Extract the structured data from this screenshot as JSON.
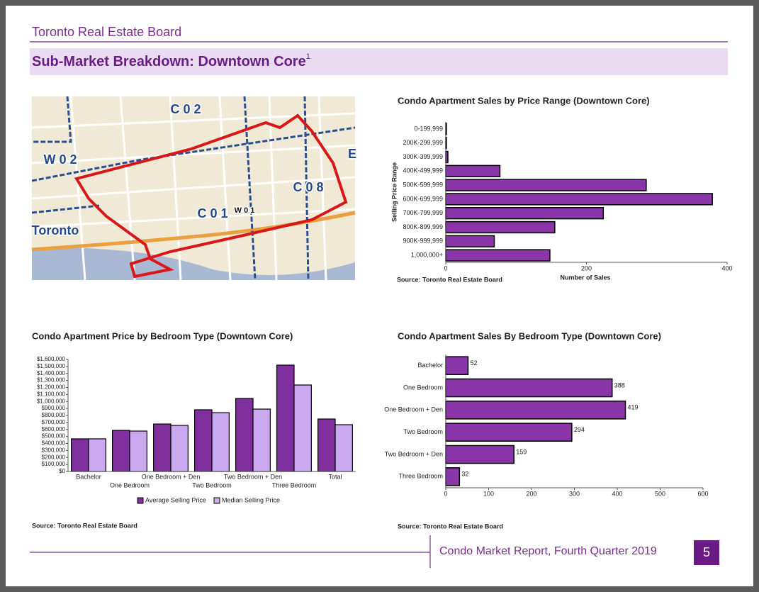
{
  "header": {
    "org": "Toronto Real Estate Board",
    "title": "Sub-Market Breakdown: Downtown Core",
    "footnote": "1"
  },
  "map": {
    "labels": [
      "C 0 2",
      "W 0 2",
      "C 0 8",
      "C 0 1",
      "W 0 1",
      "Toronto",
      "E"
    ]
  },
  "chart_data": [
    {
      "type": "hbar",
      "title": "Condo Apartment Sales by Price Range (Downtown Core)",
      "categories": [
        "0-199,999",
        "200K-299,999",
        "300K-399,999",
        "400K-499,999",
        "500K-599,999",
        "600K-699,999",
        "700K-799,999",
        "800K-899,999",
        "900K-999,999",
        "1,000,000+"
      ],
      "values": [
        1,
        1,
        3,
        77,
        285,
        379,
        224,
        155,
        69,
        148
      ],
      "color": "#8a35a8",
      "xlim": [
        0,
        400
      ],
      "xticks": [
        0,
        200,
        400
      ],
      "xlabel": "Number of Sales",
      "ylabel": "Selling Price Range",
      "source": "Source: Toronto Real Estate Board"
    },
    {
      "type": "grouped_bar",
      "title": "Condo Apartment Price by Bedroom Type (Downtown Core)",
      "categories": [
        "Bachelor",
        "One Bedroom",
        "One Bedroom + Den",
        "Two Bedroom",
        "Two Bedroom + Den",
        "Three Bedroom",
        "Total"
      ],
      "series": [
        {
          "name": "Average Selling Price",
          "color": "#7f2f9e",
          "values": [
            466000,
            587000,
            678000,
            881000,
            1043000,
            1519000,
            749000
          ]
        },
        {
          "name": "Median Selling Price",
          "color": "#cba9f0",
          "values": [
            466000,
            577000,
            658000,
            840000,
            891000,
            1235000,
            668000
          ]
        }
      ],
      "ylim": [
        0,
        1600000
      ],
      "yticks": [
        {
          "value": 0,
          "label": "$0"
        },
        {
          "value": 100000,
          "label": "$100,000"
        },
        {
          "value": 200000,
          "label": "$200,000"
        },
        {
          "value": 300000,
          "label": "$300,000"
        },
        {
          "value": 400000,
          "label": "$400,000"
        },
        {
          "value": 500000,
          "label": "$500,000"
        },
        {
          "value": 600000,
          "label": "$600,000"
        },
        {
          "value": 700000,
          "label": "$700,000"
        },
        {
          "value": 800000,
          "label": "$800,000"
        },
        {
          "value": 900000,
          "label": "$900,000"
        },
        {
          "value": 1000000,
          "label": "$1,000,000"
        },
        {
          "value": 1100000,
          "label": "$1,100,000"
        },
        {
          "value": 1200000,
          "label": "$1,200,000"
        },
        {
          "value": 1300000,
          "label": "$1,300,000"
        },
        {
          "value": 1400000,
          "label": "$1,400,000"
        },
        {
          "value": 1500000,
          "label": "$1,500,000"
        },
        {
          "value": 1600000,
          "label": "$1,600,000"
        }
      ],
      "legend": "bottom",
      "source": "Source: Toronto Real Estate Board"
    },
    {
      "type": "hbar",
      "title": "Condo Apartment Sales By Bedroom Type (Downtown Core)",
      "categories": [
        "Bachelor",
        "One Bedroom",
        "One Bedroom + Den",
        "Two Bedroom",
        "Two Bedroom + Den",
        "Three Bedroom"
      ],
      "values": [
        52,
        388,
        419,
        294,
        159,
        32
      ],
      "color": "#8a35a8",
      "xlim": [
        0,
        600
      ],
      "xticks": [
        0,
        100,
        200,
        300,
        400,
        500,
        600
      ],
      "data_labels": true,
      "source": "Source: Toronto Real Estate Board"
    }
  ],
  "footer": {
    "report": "Condo Market Report, Fourth Quarter 2019",
    "page": "5"
  }
}
